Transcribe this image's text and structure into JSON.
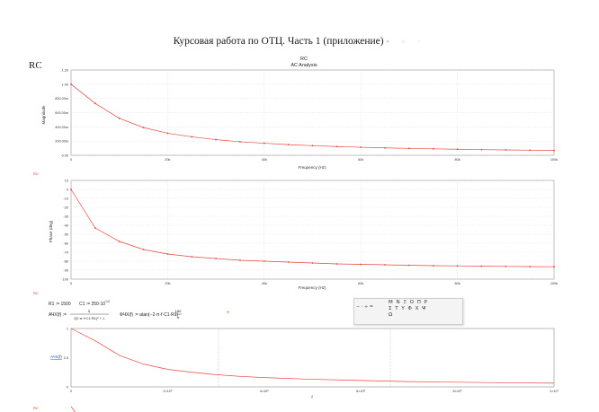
{
  "document": {
    "title": "Курсовая работа по ОТЦ. Часть 1 (приложение)",
    "side_label": "RC"
  },
  "magnitude_plot": {
    "heading": "RC",
    "subheading": "AC Analysis",
    "ylabel": "Magnitude",
    "xlabel": "Frequency (Hz)",
    "yticks": [
      "0.00",
      "200.00m",
      "400.00m",
      "600.00m",
      "800.00m",
      "1.00",
      "1.20"
    ],
    "xticks": [
      "0",
      "20k",
      "40k",
      "60k",
      "80k",
      "100k"
    ],
    "marker": "RC",
    "color": "#e8453c"
  },
  "phase_plot": {
    "ylabel": "Phase (deg)",
    "xlabel": "Frequency (Hz)",
    "yticks": [
      "10",
      "0",
      "-10",
      "-20",
      "-30",
      "-40",
      "-50",
      "-60",
      "-70",
      "-80",
      "-90",
      "-100"
    ],
    "xticks": [
      "0",
      "20k",
      "40k",
      "60k",
      "80k",
      "100k"
    ],
    "marker": "RC"
  },
  "mathcad": {
    "r1": "R1 := 1500",
    "c1": "C1 := 250·10",
    "c1_exp": "−12",
    "achh_lhs": "АЧХ(f) :=",
    "achh_num": "1",
    "achh_den": "√(2·π·f·C1·R1)² + 1",
    "fchh_lhs": "ФЧХ(f) := atan(−2·π·f·C1·R1)·",
    "fchh_frac_num": "180",
    "fchh_frac_den": "π",
    "plot_ylabel": "АЧХ(f)",
    "plot_xlabel": "f",
    "yticks": [
      "0",
      "0.5",
      "1"
    ],
    "xticks": [
      "0",
      "2×10⁶",
      "4×10⁶",
      "6×10⁶",
      "8×10⁶",
      "1×10⁷"
    ],
    "marker": "RC"
  },
  "symbol_toolbar": {
    "operators": [
      "−",
      "·",
      "÷",
      "="
    ],
    "greek_row1": [
      "Μ",
      "Ν",
      "Ξ",
      "Ο",
      "Π",
      "Ρ"
    ],
    "greek_row2": [
      "Σ",
      "Τ",
      "Υ",
      "Φ",
      "Χ",
      "Ψ"
    ],
    "greek_row3": [
      "Ω"
    ]
  },
  "chart_data": [
    {
      "type": "line",
      "title": "RC",
      "subtitle": "AC Analysis",
      "xlabel": "Frequency (Hz)",
      "ylabel": "Magnitude",
      "xlim": [
        0,
        100000
      ],
      "ylim": [
        0,
        1.2
      ],
      "grid": true,
      "series": [
        {
          "x": [
            0,
            5000,
            10000,
            15000,
            20000,
            25000,
            30000,
            35000,
            40000,
            45000,
            50000,
            55000,
            60000,
            65000,
            70000,
            75000,
            80000,
            85000,
            90000,
            95000,
            100000
          ],
          "y": [
            1.0,
            0.73,
            0.52,
            0.39,
            0.31,
            0.26,
            0.22,
            0.19,
            0.17,
            0.15,
            0.135,
            0.123,
            0.113,
            0.104,
            0.097,
            0.091,
            0.085,
            0.08,
            0.076,
            0.072,
            0.068
          ]
        }
      ]
    },
    {
      "type": "line",
      "xlabel": "Frequency (Hz)",
      "ylabel": "Phase (deg)",
      "xlim": [
        0,
        100000
      ],
      "ylim": [
        -100,
        10
      ],
      "grid": true,
      "series": [
        {
          "x": [
            0,
            5000,
            10000,
            15000,
            20000,
            25000,
            30000,
            35000,
            40000,
            45000,
            50000,
            55000,
            60000,
            65000,
            70000,
            75000,
            80000,
            85000,
            90000,
            95000,
            100000
          ],
          "y": [
            0,
            -43,
            -58,
            -67,
            -72,
            -75,
            -77,
            -79,
            -80,
            -81,
            -82,
            -83,
            -83.5,
            -84,
            -84.5,
            -85,
            -85.2,
            -85.5,
            -85.8,
            -86,
            -86.2
          ]
        }
      ]
    },
    {
      "type": "line",
      "xlabel": "f",
      "ylabel": "АЧХ(f)",
      "xlim": [
        0,
        10000000
      ],
      "ylim": [
        0,
        1
      ],
      "grid": false,
      "series": [
        {
          "x": [
            0,
            500000,
            1000000,
            1500000,
            2000000,
            2500000,
            3000000,
            3500000,
            4000000,
            5000000,
            6000000,
            7000000,
            8000000,
            9000000,
            10000000
          ],
          "y": [
            1.0,
            0.79,
            0.54,
            0.39,
            0.3,
            0.25,
            0.21,
            0.18,
            0.16,
            0.13,
            0.11,
            0.09,
            0.08,
            0.07,
            0.064
          ]
        }
      ]
    }
  ]
}
